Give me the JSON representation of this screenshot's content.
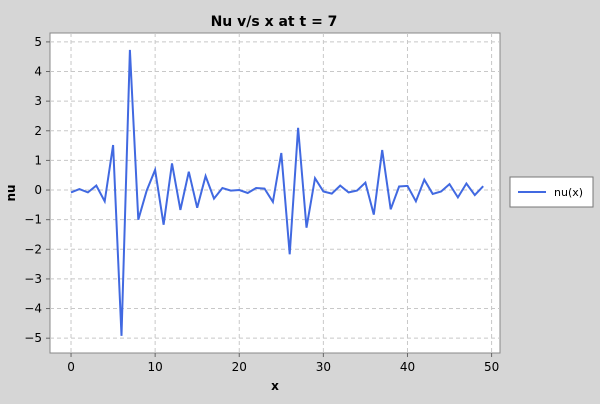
{
  "chart_data": {
    "type": "line",
    "title": "Nu v/s x at t = 7",
    "xlabel": "x",
    "ylabel": "nu",
    "xlim": [
      -2.5,
      51
    ],
    "ylim": [
      -5.5,
      5.3
    ],
    "xticks": [
      0,
      10,
      20,
      30,
      40,
      50
    ],
    "yticks": [
      -5,
      -4,
      -3,
      -2,
      -1,
      0,
      1,
      2,
      3,
      4,
      5
    ],
    "grid": true,
    "legend_position": "right",
    "series": [
      {
        "name": "nu(x)",
        "color": "#4169e1",
        "x": [
          0,
          1,
          2,
          3,
          4,
          5,
          6,
          7,
          8,
          9,
          10,
          11,
          12,
          13,
          14,
          15,
          16,
          17,
          18,
          19,
          20,
          21,
          22,
          23,
          24,
          25,
          26,
          27,
          28,
          29,
          30,
          31,
          32,
          33,
          34,
          35,
          36,
          37,
          38,
          39,
          40,
          41,
          42,
          43,
          44,
          45,
          46,
          47,
          48,
          49
        ],
        "y": [
          -0.08,
          0.03,
          -0.08,
          0.15,
          -0.38,
          1.52,
          -4.92,
          4.73,
          -1.0,
          -0.02,
          0.68,
          -1.17,
          0.9,
          -0.67,
          0.62,
          -0.6,
          0.47,
          -0.29,
          0.07,
          -0.02,
          0.0,
          -0.1,
          0.07,
          0.05,
          -0.4,
          1.25,
          -2.17,
          2.1,
          -1.27,
          0.4,
          -0.05,
          -0.12,
          0.15,
          -0.08,
          -0.02,
          0.25,
          -0.83,
          1.35,
          -0.65,
          0.12,
          0.14,
          -0.38,
          0.35,
          -0.13,
          -0.05,
          0.2,
          -0.25,
          0.22,
          -0.17,
          0.13
        ]
      }
    ]
  }
}
